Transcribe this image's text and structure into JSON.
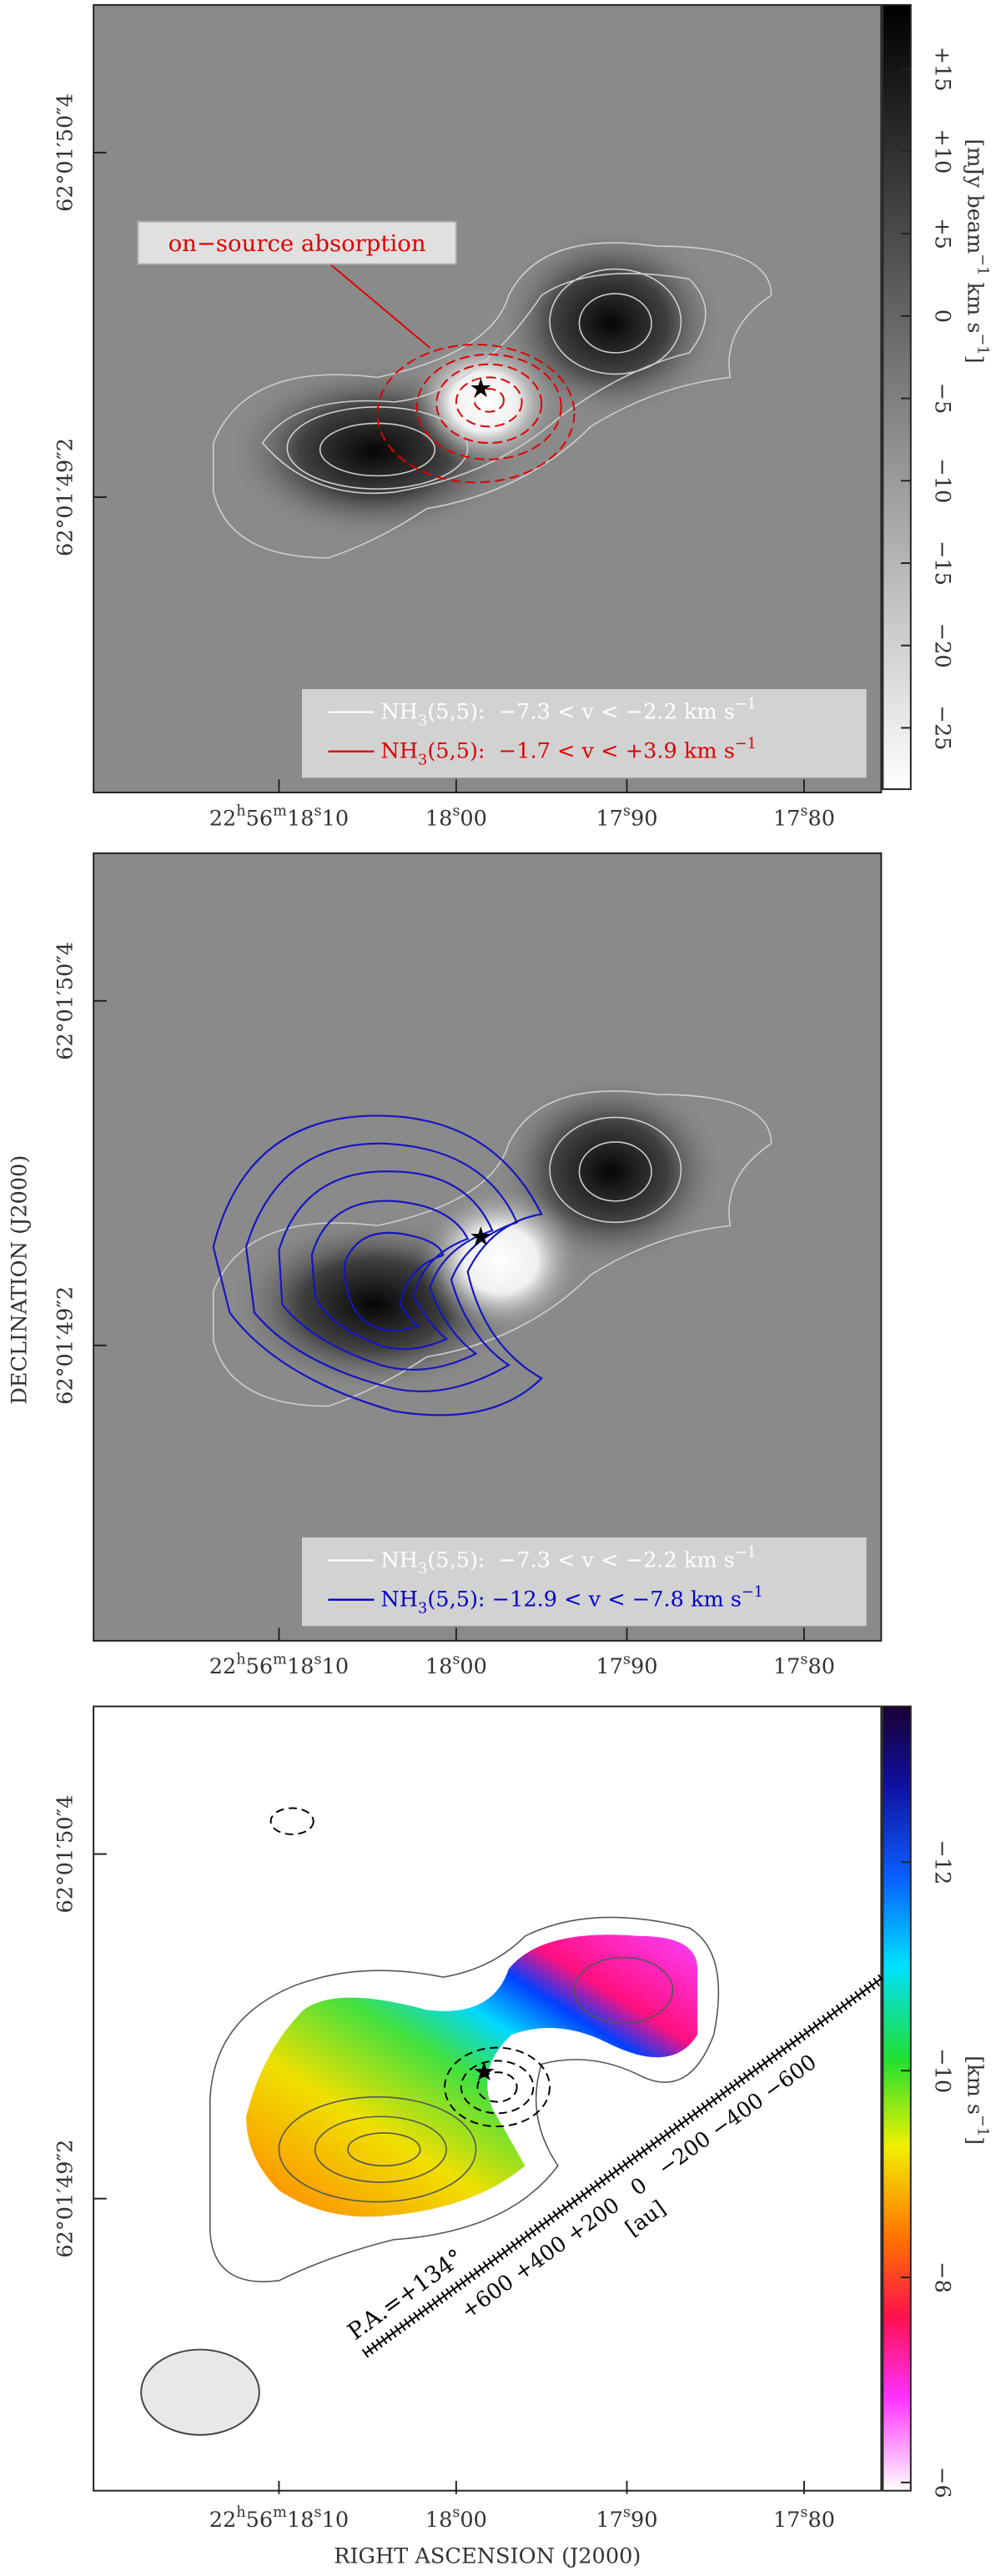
{
  "figure": {
    "y_axis_label": "DECLINATION (J2000)",
    "x_axis_label": "RIGHT ASCENSION (J2000)",
    "ra_ticks": [
      [
        "22",
        "h",
        "56",
        "m",
        "18",
        "s",
        "10"
      ],
      [
        "18",
        "s",
        "00"
      ],
      [
        "17",
        "s",
        "90"
      ],
      [
        "17",
        "s",
        "80"
      ]
    ],
    "dec_ticks": [
      "62°01′50″4",
      "62°01′49″2"
    ],
    "panels": [
      {
        "annotation": "on−source absorption",
        "colorbar": {
          "label": [
            "[mJy beam",
            "−1",
            " km s",
            "−1",
            "]"
          ],
          "ticks": [
            "+15",
            "+10",
            "+5",
            "0",
            "−5",
            "−10",
            "−15",
            "−20",
            "−25"
          ]
        },
        "legend": [
          {
            "species": "NH",
            "sub": "3",
            "text": "(5,5):  −7.3 < v < −2.2 km s",
            "sup": "−1",
            "color": "#ffffff"
          },
          {
            "species": "NH",
            "sub": "3",
            "text": "(5,5):  −1.7 < v < +3.9 km s",
            "sup": "−1",
            "color": "#e00000"
          }
        ]
      },
      {
        "legend": [
          {
            "species": "NH",
            "sub": "3",
            "text": "(5,5):  −7.3 < v < −2.2 km s",
            "sup": "−1",
            "color": "#ffffff"
          },
          {
            "species": "NH",
            "sub": "3",
            "text": "(5,5): −12.9 < v < −7.8 km s",
            "sup": "−1",
            "color": "#0000cc"
          }
        ]
      },
      {
        "colorbar": {
          "label": [
            "[km s",
            "−1",
            "]"
          ],
          "ticks": [
            "−12",
            "−10",
            "−8",
            "−6"
          ]
        },
        "scale_bar": {
          "position_angle": "P.A.=+134°",
          "ticks": "+600 +400 +200   0   −200 −400 −600",
          "unit": "[au]"
        }
      }
    ]
  }
}
